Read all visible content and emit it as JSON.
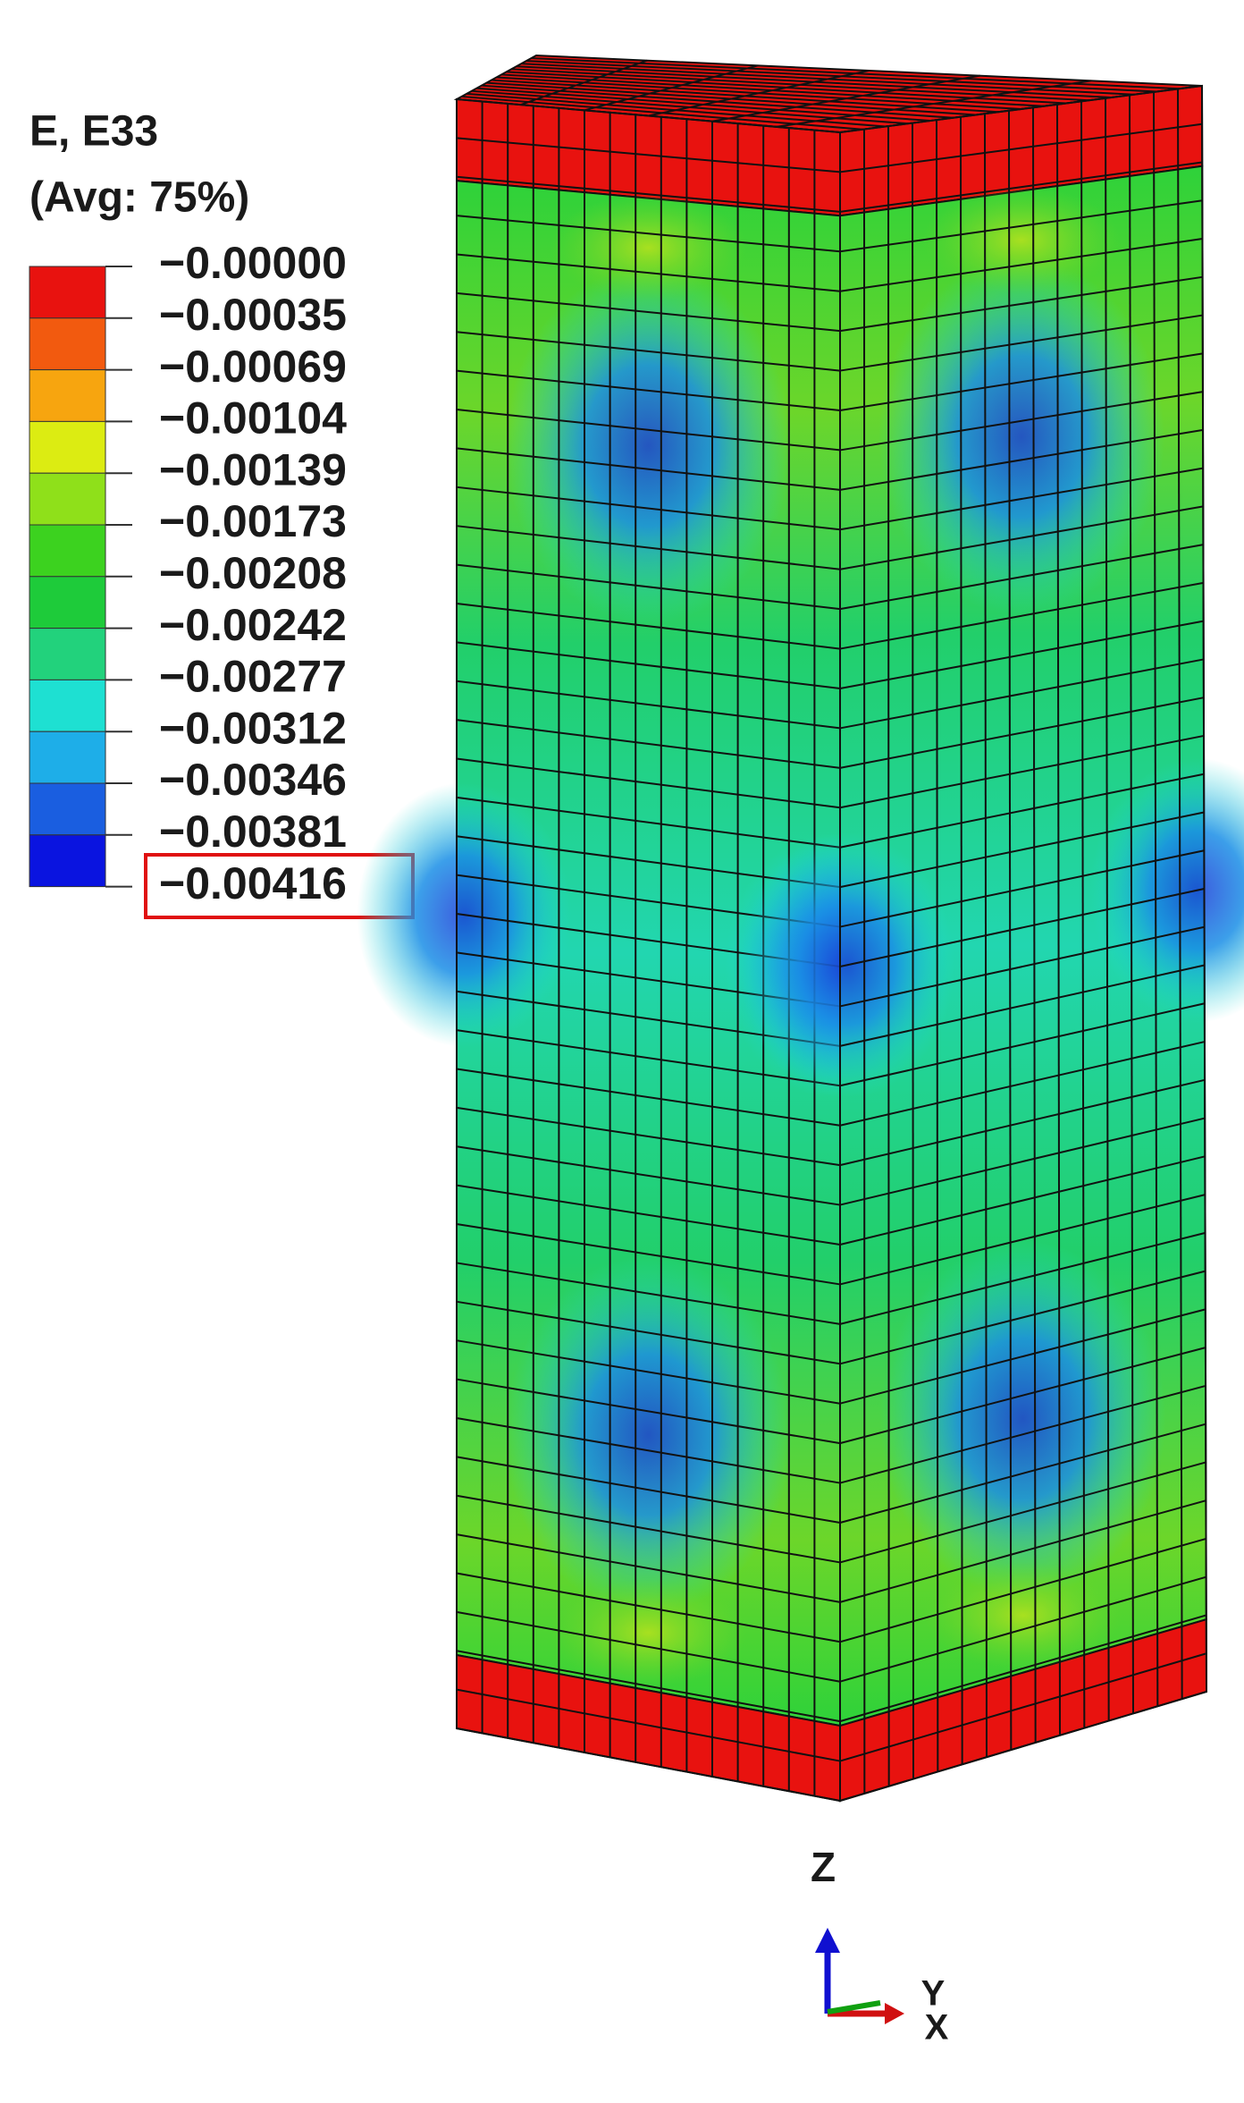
{
  "legend": {
    "title": "E, E33",
    "subtitle": "(Avg: 75%)",
    "labels": [
      "−0.00000",
      "−0.00035",
      "−0.00069",
      "−0.00104",
      "−0.00139",
      "−0.00173",
      "−0.00208",
      "−0.00242",
      "−0.00277",
      "−0.00312",
      "−0.00346",
      "−0.00381",
      "−0.00416"
    ],
    "colors": [
      "#e8120f",
      "#f25a0f",
      "#f7a50f",
      "#dcec12",
      "#8fe01a",
      "#3cd21f",
      "#1ecb3a",
      "#22d27c",
      "#1ee0d2",
      "#1eaee8",
      "#1a5ee0",
      "#0a14e0"
    ]
  },
  "triad": {
    "z": "Z",
    "y": "Y",
    "x": "X"
  }
}
